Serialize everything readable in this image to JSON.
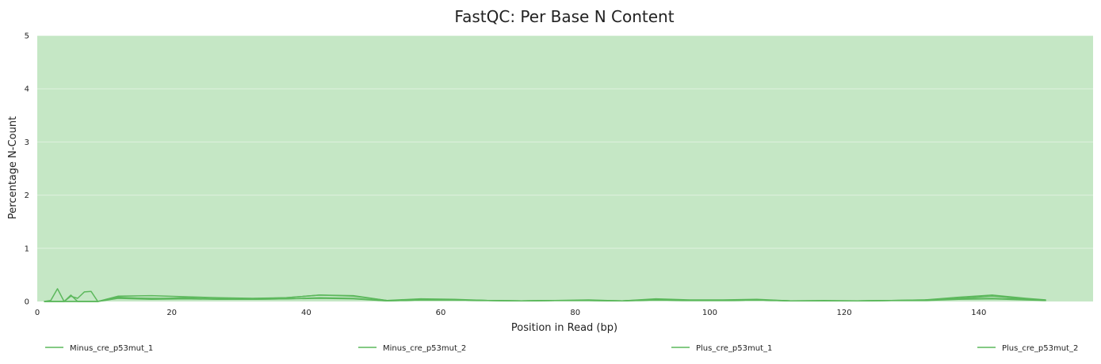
{
  "chart_data": {
    "type": "line",
    "title": "FastQC: Per Base N Content",
    "xlabel": "Position in Read (bp)",
    "ylabel": "Percentage N-Count",
    "xlim": [
      0,
      157
    ],
    "ylim": [
      0,
      5
    ],
    "x_ticks": [
      0,
      20,
      40,
      60,
      80,
      100,
      120,
      140
    ],
    "y_ticks": [
      0,
      1,
      2,
      3,
      4,
      5
    ],
    "grid": true,
    "legend_position": "bottom",
    "background_color": "#c5e7c5",
    "line_color": "#5cb85c",
    "series": [
      {
        "name": "Minus_cre_p53mut_1",
        "x": [
          1,
          2,
          3,
          4,
          5,
          6,
          7,
          8,
          9,
          12,
          17,
          22,
          27,
          32,
          37,
          42,
          47,
          52,
          57,
          62,
          67,
          72,
          77,
          82,
          87,
          92,
          97,
          102,
          107,
          112,
          117,
          122,
          127,
          132,
          137,
          142,
          147,
          150
        ],
        "y": [
          0.0,
          0.02,
          0.24,
          0.0,
          0.12,
          0.0,
          0.0,
          0.0,
          0.0,
          0.1,
          0.11,
          0.09,
          0.07,
          0.06,
          0.07,
          0.12,
          0.11,
          0.02,
          0.03,
          0.03,
          0.02,
          0.01,
          0.02,
          0.02,
          0.01,
          0.04,
          0.02,
          0.02,
          0.03,
          0.01,
          0.01,
          0.01,
          0.02,
          0.03,
          0.08,
          0.12,
          0.06,
          0.03
        ]
      },
      {
        "name": "Minus_cre_p53mut_2",
        "x": [
          1,
          2,
          3,
          4,
          5,
          6,
          7,
          8,
          9,
          12,
          17,
          22,
          27,
          32,
          37,
          42,
          47,
          52,
          57,
          62,
          67,
          72,
          77,
          82,
          87,
          92,
          97,
          102,
          107,
          112,
          117,
          122,
          127,
          132,
          137,
          142,
          147,
          150
        ],
        "y": [
          0.0,
          0.0,
          0.0,
          0.0,
          0.1,
          0.06,
          0.18,
          0.19,
          0.0,
          0.08,
          0.05,
          0.07,
          0.04,
          0.05,
          0.07,
          0.12,
          0.1,
          0.02,
          0.05,
          0.04,
          0.02,
          0.01,
          0.02,
          0.03,
          0.01,
          0.05,
          0.03,
          0.03,
          0.04,
          0.01,
          0.02,
          0.01,
          0.02,
          0.02,
          0.06,
          0.1,
          0.05,
          0.02
        ]
      },
      {
        "name": "Plus_cre_p53mut_1",
        "x": [
          1,
          2,
          3,
          4,
          5,
          6,
          7,
          8,
          9,
          12,
          17,
          22,
          27,
          32,
          37,
          42,
          47,
          52,
          57,
          62,
          67,
          72,
          77,
          82,
          87,
          92,
          97,
          102,
          107,
          112,
          117,
          122,
          127,
          132,
          137,
          142,
          147,
          150
        ],
        "y": [
          0.0,
          0.0,
          0.0,
          0.0,
          0.0,
          0.0,
          0.0,
          0.0,
          0.0,
          0.06,
          0.04,
          0.05,
          0.04,
          0.04,
          0.05,
          0.06,
          0.05,
          0.01,
          0.03,
          0.03,
          0.02,
          0.01,
          0.02,
          0.02,
          0.01,
          0.03,
          0.02,
          0.02,
          0.03,
          0.01,
          0.01,
          0.01,
          0.02,
          0.02,
          0.04,
          0.05,
          0.03,
          0.02
        ]
      },
      {
        "name": "Plus_cre_p53mut_2",
        "x": [
          1,
          2,
          3,
          4,
          5,
          6,
          7,
          8,
          9,
          12,
          17,
          22,
          27,
          32,
          37,
          42,
          47,
          52,
          57,
          62,
          67,
          72,
          77,
          82,
          87,
          92,
          97,
          102,
          107,
          112,
          117,
          122,
          127,
          132,
          137,
          142,
          147,
          150
        ],
        "y": [
          0.0,
          0.0,
          0.0,
          0.0,
          0.0,
          0.0,
          0.0,
          0.0,
          0.0,
          0.07,
          0.06,
          0.06,
          0.05,
          0.04,
          0.05,
          0.07,
          0.06,
          0.01,
          0.03,
          0.03,
          0.02,
          0.01,
          0.02,
          0.02,
          0.01,
          0.03,
          0.02,
          0.02,
          0.03,
          0.01,
          0.01,
          0.01,
          0.02,
          0.03,
          0.05,
          0.06,
          0.04,
          0.02
        ]
      }
    ]
  }
}
